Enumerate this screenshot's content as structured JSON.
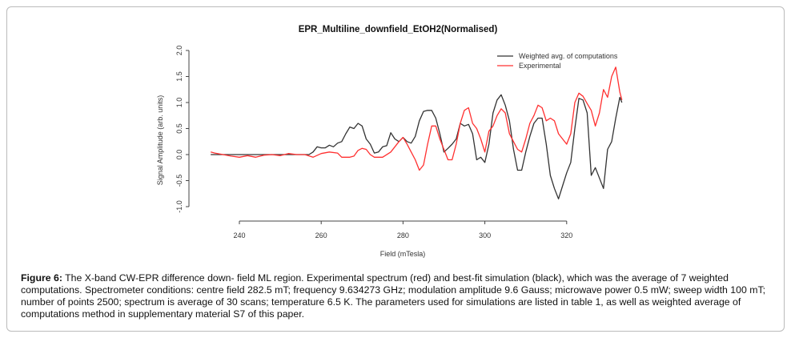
{
  "chart_data": {
    "type": "line",
    "title": "EPR_Multiline_downfield_EtOH2(Normalised)",
    "xlabel": "Field (mTesla)",
    "ylabel": "Signal Amplitude (arb. units)",
    "xlim": [
      228,
      336
    ],
    "ylim": [
      -1.3,
      2.1
    ],
    "xticks": [
      240,
      260,
      280,
      300,
      320
    ],
    "yticks": [
      -1.0,
      -0.5,
      0.0,
      0.5,
      1.0,
      1.5,
      2.0
    ],
    "grid": false,
    "legend": "top-right",
    "series": [
      {
        "name": "Weighted avg. of computations",
        "color": "#000000",
        "x": [
          233,
          257,
          258,
          259,
          260,
          261,
          262,
          263,
          264,
          265,
          266,
          267,
          268,
          269,
          270,
          271,
          272,
          273,
          274,
          275,
          276,
          277,
          278,
          279,
          280,
          281,
          282,
          283,
          284,
          285,
          286,
          287,
          288,
          289,
          290,
          291,
          292,
          293,
          294,
          295,
          296,
          297,
          298,
          299,
          300,
          301,
          302,
          303,
          304,
          305,
          306,
          307,
          308,
          309,
          310,
          311,
          312,
          313,
          314,
          315,
          316,
          317,
          318,
          319,
          320,
          321,
          322,
          323,
          324,
          325,
          326,
          327,
          328,
          329,
          330,
          331,
          332,
          333,
          333.5
        ],
        "y": [
          0,
          0,
          0.05,
          0.15,
          0.13,
          0.13,
          0.18,
          0.15,
          0.22,
          0.25,
          0.4,
          0.53,
          0.5,
          0.6,
          0.55,
          0.3,
          0.2,
          0.03,
          0.05,
          0.15,
          0.17,
          0.42,
          0.3,
          0.25,
          0.33,
          0.25,
          0.22,
          0.35,
          0.65,
          0.83,
          0.85,
          0.85,
          0.7,
          0.4,
          0.05,
          0.12,
          0.2,
          0.3,
          0.6,
          0.55,
          0.58,
          0.4,
          -0.1,
          -0.05,
          -0.15,
          0.2,
          0.8,
          1.05,
          1.15,
          0.95,
          0.65,
          0.1,
          -0.3,
          -0.3,
          0.05,
          0.35,
          0.6,
          0.7,
          0.7,
          0.2,
          -0.4,
          -0.65,
          -0.85,
          -0.6,
          -0.35,
          -0.15,
          0.5,
          1.08,
          1.05,
          0.8,
          -0.4,
          -0.25,
          -0.45,
          -0.65,
          0.1,
          0.25,
          0.7,
          1.1,
          1.0
        ]
      },
      {
        "name": "Experimental",
        "color": "#ff0000",
        "x": [
          233,
          234,
          236,
          238,
          240,
          242,
          244,
          246,
          248,
          250,
          252,
          254,
          256,
          258,
          260,
          262,
          264,
          265,
          267,
          268,
          269,
          270,
          271,
          272,
          273,
          275,
          277,
          279,
          280,
          281,
          282,
          283,
          284,
          285,
          286,
          287,
          288,
          289,
          290,
          291,
          292,
          293,
          294,
          295,
          296,
          297,
          298,
          299,
          300,
          301,
          302,
          303,
          304,
          305,
          306,
          307,
          308,
          309,
          310,
          311,
          312,
          313,
          314,
          315,
          316,
          317,
          318,
          319,
          320,
          321,
          322,
          323,
          324,
          325,
          326,
          327,
          328,
          329,
          330,
          331,
          332,
          333,
          333.5
        ],
        "y": [
          0.05,
          0.03,
          0,
          -0.03,
          -0.05,
          -0.02,
          -0.05,
          -0.01,
          0,
          -0.02,
          0.02,
          0,
          0,
          -0.05,
          0.02,
          0.05,
          0.03,
          -0.05,
          -0.05,
          -0.03,
          0.08,
          0.12,
          0.1,
          0,
          -0.05,
          -0.05,
          0.05,
          0.25,
          0.33,
          0.2,
          0.05,
          -0.1,
          -0.3,
          -0.2,
          0.2,
          0.55,
          0.55,
          0.3,
          0.1,
          -0.1,
          -0.1,
          0.2,
          0.6,
          0.85,
          0.9,
          0.6,
          0.5,
          0.3,
          0.05,
          0.45,
          0.55,
          0.75,
          0.88,
          0.8,
          0.4,
          0.25,
          0.1,
          0.05,
          0.3,
          0.6,
          0.75,
          0.95,
          0.9,
          0.65,
          0.7,
          0.65,
          0.4,
          0.3,
          0.2,
          0.4,
          1.0,
          1.18,
          1.12,
          0.98,
          0.85,
          0.55,
          0.8,
          1.25,
          1.1,
          1.5,
          1.68,
          1.2,
          1.05
        ]
      }
    ]
  },
  "caption": {
    "label": "Figure 6:",
    "text": " The X-band CW-EPR difference down- field ML region. Experimental spectrum (red) and best-fit simulation (black), which was the average of 7 weighted computations. Spectrometer conditions: centre field 282.5 mT; frequency 9.634273 GHz; modulation amplitude 9.6 Gauss; microwave power 0.5 mW; sweep width 100 mT; number of points 2500; spectrum is average of 30 scans; temperature 6.5 K. The parameters used for simulations are listed in table 1, as well as weighted average of computations method in supplementary material S7 of this paper."
  }
}
